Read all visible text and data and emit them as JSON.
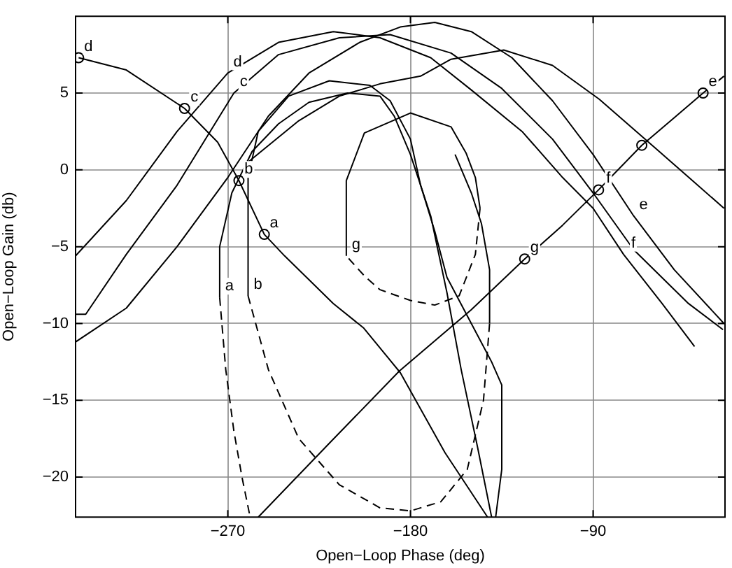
{
  "chart_data": {
    "type": "line",
    "xlabel": "Open−Loop Phase (deg)",
    "ylabel": "Open−Loop Gain (db)",
    "xlim": [
      -345,
      -25
    ],
    "ylim": [
      -22.6,
      10
    ],
    "xticks": [
      {
        "value": -270,
        "label": "−270"
      },
      {
        "value": -180,
        "label": "−180"
      },
      {
        "value": -90,
        "label": "−90"
      }
    ],
    "yticks": [
      {
        "value": -20,
        "label": "−20"
      },
      {
        "value": -15,
        "label": "−15"
      },
      {
        "value": -10,
        "label": "−10"
      },
      {
        "value": -5,
        "label": "−5"
      },
      0,
      5
    ],
    "grid": true,
    "legend": false,
    "line_style": "solid",
    "marker": "none",
    "series": [
      {
        "color": "#000000",
        "x": [
          -255,
          -220,
          -185.5,
          -150,
          -123.7,
          -105,
          -87.3,
          -66,
          -50,
          -35.8,
          -25.5
        ],
        "values": [
          -22.6,
          -17.8,
          -13.1,
          -9.1,
          -5.8,
          -3.6,
          -1.3,
          1.6,
          3.4,
          5.0,
          6.1
        ]
      },
      {
        "color": "#000000",
        "x": [
          -343.5,
          -320,
          -291.3,
          -275,
          -264.5,
          -252,
          -242,
          -218,
          -203,
          -185,
          -163,
          -142
        ],
        "values": [
          7.3,
          6.5,
          4.0,
          1.8,
          -0.7,
          -4.2,
          -5.6,
          -8.7,
          -10.3,
          -13.2,
          -18.4,
          -22.6
        ]
      },
      {
        "color": "#000000",
        "x": [
          -345,
          -320,
          -295,
          -270,
          -245,
          -218,
          -195,
          -170,
          -150,
          -125,
          -105,
          -90,
          -75,
          -56,
          -40
        ],
        "values": [
          -5.6,
          -2,
          2.5,
          6.3,
          8.3,
          9.0,
          8.6,
          7.3,
          5.2,
          2.5,
          -0.5,
          -2.5,
          -5.5,
          -8.7,
          -11.5
        ]
      },
      {
        "color": "#000000",
        "x": [
          -345,
          -340,
          -320,
          -295,
          -267,
          -245,
          -215,
          -190,
          -160,
          -135,
          -110,
          -90,
          -70,
          -43,
          -26
        ],
        "values": [
          -9.4,
          -9.4,
          -5.5,
          -1,
          5.0,
          7.5,
          8.6,
          8.8,
          7.6,
          5.3,
          2,
          -1.5,
          -5.2,
          -8.7,
          -10.4
        ]
      },
      {
        "color": "#000000",
        "x": [
          -345,
          -320,
          -295,
          -270,
          -250,
          -230,
          -205,
          -185,
          -168,
          -150,
          -130,
          -110,
          -90,
          -70,
          -50,
          -25.5
        ],
        "values": [
          -11.2,
          -9,
          -5,
          -0.5,
          3.5,
          6.3,
          8.3,
          9.3,
          9.6,
          9.0,
          7.3,
          4.5,
          1,
          -3,
          -6.5,
          -10
        ]
      },
      {
        "color": "#000000",
        "x": [
          -260,
          -235,
          -215,
          -195,
          -175,
          -160,
          -134,
          -110,
          -87,
          -60,
          -25.5
        ],
        "values": [
          0.5,
          3.2,
          4.8,
          5.6,
          6.1,
          7.2,
          7.8,
          6.8,
          4.6,
          1.5,
          -2.5
        ]
      },
      {
        "color": "#000000",
        "x": [
          -274,
          -274,
          -268,
          -258,
          -245,
          -230,
          -211,
          -195,
          -188,
          -180,
          -170,
          -162,
          -155,
          -147,
          -140
        ],
        "values": [
          -8.3,
          -5,
          -1.5,
          1.2,
          3.0,
          4.4,
          5.0,
          4.8,
          3.5,
          1,
          -3,
          -8,
          -13,
          -18,
          -22.6
        ]
      },
      {
        "color": "#000000",
        "x": [
          -260,
          -260,
          -255,
          -240,
          -220,
          -200,
          -190,
          -180,
          -175,
          -168,
          -162,
          -150,
          -140,
          -135,
          -135,
          -138
        ],
        "values": [
          -8.2,
          -0.5,
          2.5,
          4.8,
          5.8,
          5.5,
          4.5,
          2,
          -1,
          -4,
          -7,
          -10,
          -12.5,
          -14,
          -19.5,
          -22.6
        ]
      },
      {
        "color": "#000000",
        "x": [
          -211.6,
          -211.6,
          -202.7,
          -180,
          -160,
          -152.6,
          -148,
          -145.7
        ],
        "values": [
          -5.6,
          -0.7,
          2.4,
          3.7,
          2.8,
          1.1,
          -0.5,
          -2.5
        ]
      },
      {
        "color": "#000000",
        "line_style": "dashed",
        "x": [
          -145.7,
          -148,
          -156,
          -168,
          -180,
          -195,
          -202.7,
          -211.6
        ],
        "values": [
          -2.5,
          -5.5,
          -8.2,
          -8.8,
          -8.5,
          -7.8,
          -6.9,
          -5.6
        ]
      },
      {
        "color": "#000000",
        "line_style": "dashed",
        "x": [
          -274,
          -271,
          -267,
          -263,
          -259
        ],
        "values": [
          -8.3,
          -13,
          -17,
          -20,
          -22.6
        ]
      },
      {
        "color": "#000000",
        "line_style": "dashed",
        "x": [
          -260,
          -250,
          -235,
          -215,
          -195,
          -180,
          -165,
          -152,
          -144,
          -141
        ],
        "values": [
          -8.2,
          -13,
          -17.5,
          -20.5,
          -22,
          -22.2,
          -21.6,
          -19.5,
          -15,
          -10
        ]
      },
      {
        "color": "#000000",
        "x": [
          -141,
          -141,
          -145,
          -150,
          -158
        ],
        "values": [
          -10,
          -6.5,
          -3.5,
          -1.5,
          1
        ]
      },
      {
        "type": "scatter",
        "marker": "circle",
        "color": "#000000",
        "x": [
          -343.5,
          -291.3,
          -264.5,
          -252,
          -123.7,
          -87.3,
          -66,
          -35.8
        ],
        "values": [
          7.3,
          4.0,
          -0.7,
          -4.2,
          -5.8,
          -1.3,
          1.6,
          5.0
        ]
      }
    ],
    "annotations": [
      {
        "text": "d",
        "x": -343.5,
        "y": 7.3
      },
      {
        "text": "c",
        "x": -291.3,
        "y": 4.0
      },
      {
        "text": "b",
        "x": -264.5,
        "y": -0.7
      },
      {
        "text": "a",
        "x": -252,
        "y": -4.2
      },
      {
        "text": "d",
        "x": -270,
        "y": 6.3
      },
      {
        "text": "c",
        "x": -267,
        "y": 5.0
      },
      {
        "text": "a",
        "x": -274,
        "y": -8.3
      },
      {
        "text": "b",
        "x": -260,
        "y": -8.2
      },
      {
        "text": "g",
        "x": -211.6,
        "y": -5.6
      },
      {
        "text": "g",
        "x": -123.7,
        "y": -5.8
      },
      {
        "text": "f",
        "x": -87.3,
        "y": -1.3
      },
      {
        "text": "e",
        "x": -35.8,
        "y": 5.0
      },
      {
        "text": "e",
        "x": -70,
        "y": -3
      },
      {
        "text": "f",
        "x": -75,
        "y": -5.5
      }
    ]
  }
}
